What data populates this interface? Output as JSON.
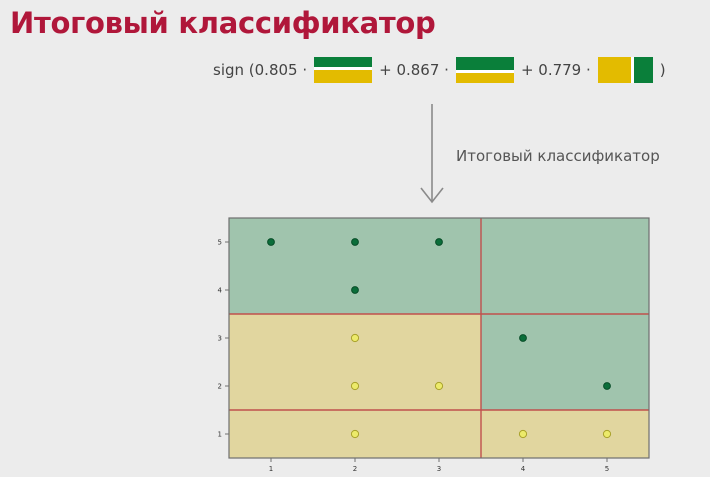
{
  "title": "Итоговый классификатор",
  "formula": {
    "prefix": "sign (0.805 ·",
    "term2": "+ 0.867 ·",
    "term3": "+ 0.779 ·",
    "suffix": ")"
  },
  "arrow_label": "Итоговый классификатор",
  "colors": {
    "title": "#b0173a",
    "green": "#0a7f3a",
    "yellow": "#e3bb00",
    "region_green": "#a0c4ad",
    "region_yellow": "#e1d69f",
    "boundary": "#c0504d"
  },
  "chart_data": {
    "type": "scatter",
    "xlim": [
      0.5,
      5.5
    ],
    "ylim": [
      0.5,
      5.5
    ],
    "xticks": [
      "1",
      "2",
      "3",
      "4",
      "5"
    ],
    "yticks": [
      "1",
      "2",
      "3",
      "4",
      "5"
    ],
    "splits": {
      "x": 3.5,
      "y_low": 1.5,
      "y_high": 3.5
    },
    "regions": [
      {
        "x": [
          0.5,
          5.5
        ],
        "y": [
          3.5,
          5.5
        ],
        "class": "green"
      },
      {
        "x": [
          0.5,
          3.5
        ],
        "y": [
          1.5,
          3.5
        ],
        "class": "yellow"
      },
      {
        "x": [
          0.5,
          3.5
        ],
        "y": [
          0.5,
          1.5
        ],
        "class": "yellow"
      },
      {
        "x": [
          3.5,
          5.5
        ],
        "y": [
          1.5,
          3.5
        ],
        "class": "green"
      },
      {
        "x": [
          3.5,
          5.5
        ],
        "y": [
          0.5,
          1.5
        ],
        "class": "yellow"
      }
    ],
    "points": [
      {
        "x": 1,
        "y": 5,
        "class": "green"
      },
      {
        "x": 2,
        "y": 5,
        "class": "green"
      },
      {
        "x": 3,
        "y": 5,
        "class": "green"
      },
      {
        "x": 2,
        "y": 4,
        "class": "green"
      },
      {
        "x": 4,
        "y": 3,
        "class": "green"
      },
      {
        "x": 5,
        "y": 2,
        "class": "green"
      },
      {
        "x": 2,
        "y": 3,
        "class": "yellow"
      },
      {
        "x": 2,
        "y": 2,
        "class": "yellow"
      },
      {
        "x": 3,
        "y": 2,
        "class": "yellow"
      },
      {
        "x": 2,
        "y": 1,
        "class": "yellow"
      },
      {
        "x": 4,
        "y": 1,
        "class": "yellow"
      },
      {
        "x": 5,
        "y": 1,
        "class": "yellow"
      }
    ]
  }
}
